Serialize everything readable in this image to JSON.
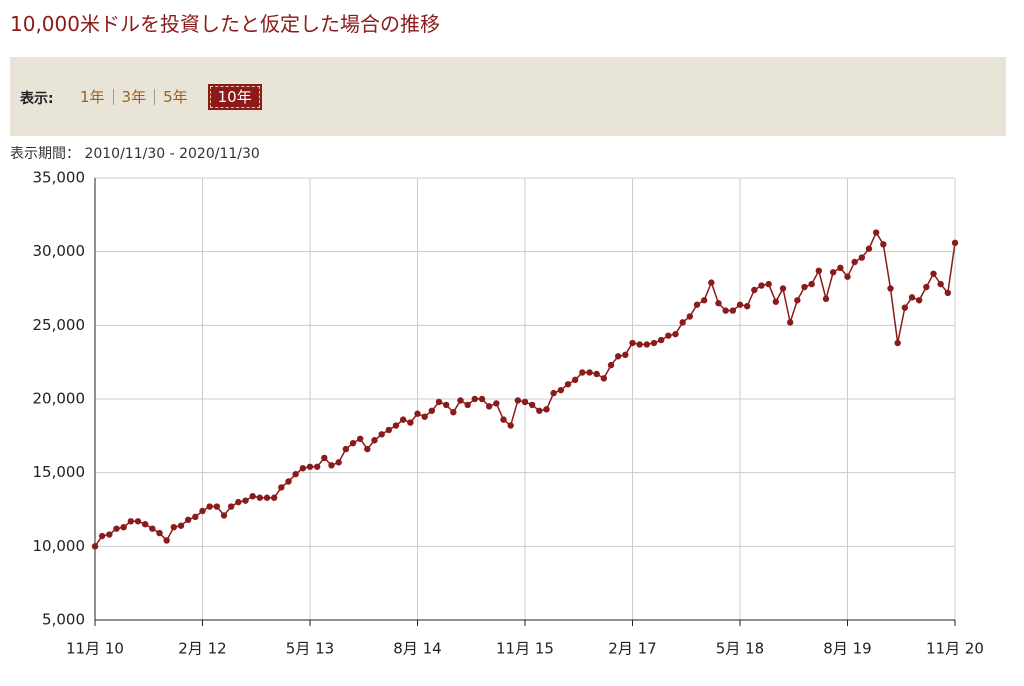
{
  "header": {
    "title": "10,000米ドルを投資したと仮定した場合の推移"
  },
  "filter": {
    "label": "表示:",
    "options": [
      "1年",
      "3年",
      "5年",
      "10年"
    ],
    "selected": 3
  },
  "period": "表示期間： 2010/11/30 - 2020/11/30",
  "chart_data": {
    "type": "line",
    "color": "#8b1a1a",
    "grid": true,
    "categories": [
      "11月 10",
      null,
      null,
      null,
      null,
      null,
      null,
      null,
      null,
      null,
      null,
      null,
      null,
      null,
      null,
      "2月 12",
      null,
      null,
      null,
      null,
      null,
      null,
      null,
      null,
      null,
      null,
      null,
      null,
      null,
      null,
      "5月 13",
      null,
      null,
      null,
      null,
      null,
      null,
      null,
      null,
      null,
      null,
      null,
      null,
      null,
      null,
      "8月 14",
      null,
      null,
      null,
      null,
      null,
      null,
      null,
      null,
      null,
      null,
      null,
      null,
      null,
      null,
      "11月 15",
      null,
      null,
      null,
      null,
      null,
      null,
      null,
      null,
      null,
      null,
      null,
      null,
      null,
      null,
      "2月 17",
      null,
      null,
      null,
      null,
      null,
      null,
      null,
      null,
      null,
      null,
      null,
      null,
      null,
      null,
      "5月 18",
      null,
      null,
      null,
      null,
      null,
      null,
      null,
      null,
      null,
      null,
      null,
      null,
      null,
      null,
      "8月 19",
      null,
      null,
      null,
      null,
      null,
      null,
      null,
      null,
      null,
      null,
      null,
      null,
      null,
      null,
      "11月 20"
    ],
    "values": [
      10000,
      10700,
      10800,
      11200,
      11300,
      11700,
      11700,
      11500,
      11200,
      10900,
      10400,
      11300,
      11400,
      11800,
      12000,
      12400,
      12700,
      12700,
      12100,
      12700,
      13000,
      13100,
      13400,
      13300,
      13300,
      13300,
      14000,
      14400,
      14900,
      15300,
      15400,
      15400,
      16000,
      15500,
      15700,
      16600,
      17000,
      17300,
      16600,
      17200,
      17600,
      17900,
      18200,
      18600,
      18400,
      19000,
      18800,
      19200,
      19800,
      19600,
      19100,
      19900,
      19600,
      20000,
      20000,
      19500,
      19700,
      18600,
      18200,
      19900,
      19800,
      19600,
      19200,
      19300,
      20400,
      20600,
      21000,
      21300,
      21800,
      21800,
      21700,
      21400,
      22300,
      22900,
      23000,
      23800,
      23700,
      23700,
      23800,
      24000,
      24300,
      24400,
      25200,
      25600,
      26400,
      26700,
      27900,
      26500,
      26000,
      26000,
      26400,
      26300,
      27400,
      27700,
      27800,
      26600,
      27500,
      25200,
      26700,
      27600,
      27800,
      28700,
      26800,
      28600,
      28900,
      28300,
      29300,
      29600,
      30200,
      31300,
      30500,
      27500,
      23800,
      26200,
      26900,
      26700,
      27600,
      28500,
      27800,
      27200,
      30600
    ],
    "ylim": [
      5000,
      35000
    ],
    "yticks": [
      {
        "value": 5000,
        "label": "5,000"
      },
      {
        "value": 10000,
        "label": "10,000"
      },
      {
        "value": 15000,
        "label": "15,000"
      },
      {
        "value": 20000,
        "label": "20,000"
      },
      {
        "value": 25000,
        "label": "25,000"
      },
      {
        "value": 30000,
        "label": "30,000"
      },
      {
        "value": 35000,
        "label": "35,000"
      }
    ]
  }
}
